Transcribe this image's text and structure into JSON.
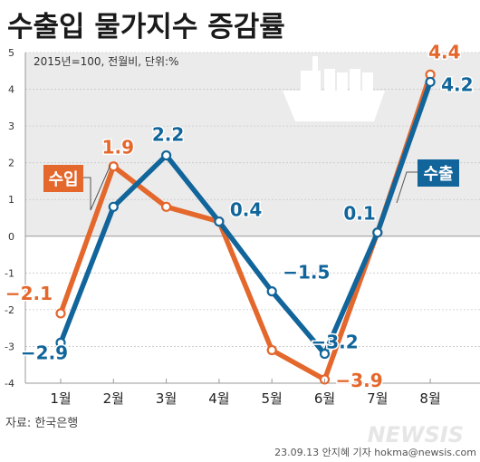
{
  "chart_data": {
    "type": "line",
    "title": "수출입 물가지수 증감률",
    "subtitle": "2015년=100, 전월비, 단위:%",
    "categories": [
      "1월",
      "2월",
      "3월",
      "4월",
      "5월",
      "6월",
      "7월",
      "8월"
    ],
    "ylim": [
      -4,
      5
    ],
    "yticks": [
      "5",
      "4",
      "3",
      "2",
      "1",
      "0",
      "-1",
      "-2",
      "-3",
      "-4"
    ],
    "grid": true,
    "series": [
      {
        "name": "수입",
        "color": "#e4672c",
        "values": [
          -2.1,
          1.9,
          0.8,
          0.4,
          -3.1,
          -3.9,
          0.1,
          4.4
        ],
        "labels": [
          "−2.1",
          "1.9",
          "",
          "",
          "",
          "−3.9",
          "",
          "4.4"
        ]
      },
      {
        "name": "수출",
        "color": "#11659a",
        "values": [
          -2.9,
          0.8,
          2.2,
          0.4,
          -1.5,
          -3.2,
          0.1,
          4.2
        ],
        "labels": [
          "−2.9",
          "",
          "2.2",
          "0.4",
          "−1.5",
          "−3.2",
          "0.1",
          "4.2"
        ]
      }
    ]
  },
  "footer": {
    "source": "자료: 한국은행",
    "credit": "23.09.13 안지혜 기자 hokma@newsis.com",
    "logo": "NEWSIS"
  },
  "icons": {
    "ship": "cargo-ship-icon"
  }
}
